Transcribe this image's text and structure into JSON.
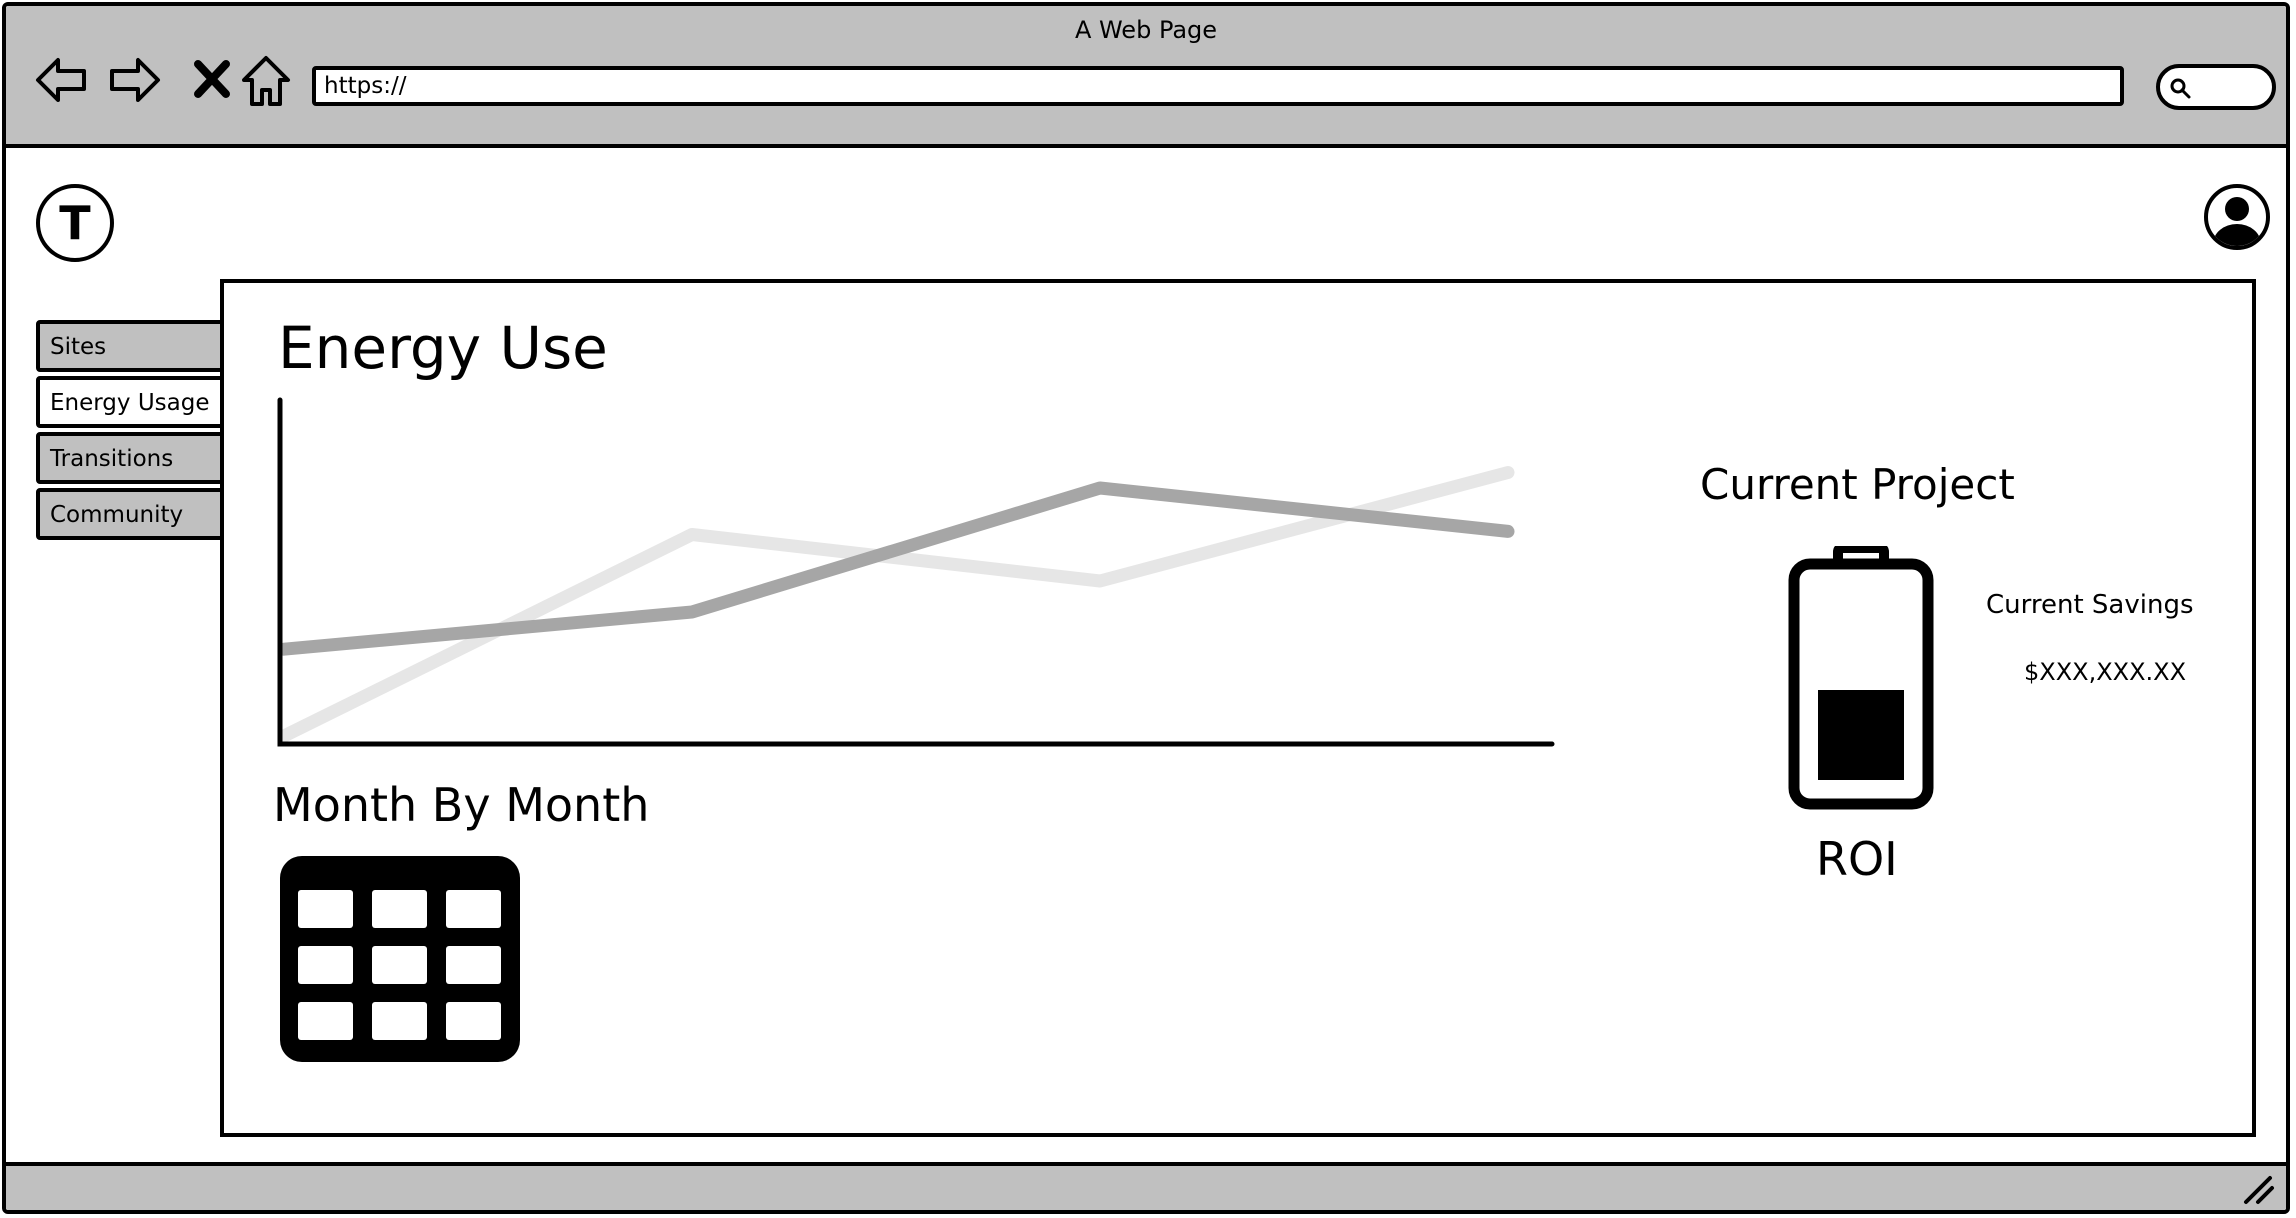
{
  "window": {
    "title": "A Web Page"
  },
  "toolbar": {
    "url": "https://",
    "icons": [
      "back-arrow-icon",
      "forward-arrow-icon",
      "close-icon",
      "home-icon",
      "search-icon"
    ]
  },
  "header": {
    "logo_letter": "T",
    "avatar_icon": "user-avatar-icon"
  },
  "sidebar": {
    "items": [
      {
        "label": "Sites",
        "active": false
      },
      {
        "label": "Energy Usage",
        "active": true
      },
      {
        "label": "Transitions",
        "active": false
      },
      {
        "label": "Community",
        "active": false
      }
    ]
  },
  "main": {
    "energy_title": "Energy Use",
    "month_title": "Month By Month",
    "project": {
      "title": "Current Project",
      "savings_label": "Current Savings",
      "savings_value": "$XXX,XXX.XX",
      "roi_label": "ROI",
      "battery_level": 0.45
    }
  },
  "colors": {
    "chrome": "#c0c0c0",
    "series_dark": "#a6a6a6",
    "series_light": "#e6e6e6"
  },
  "chart_data": {
    "type": "line",
    "title": "",
    "xlabel": "",
    "ylabel": "",
    "x": [
      1,
      2,
      3,
      4
    ],
    "ylim": [
      0,
      100
    ],
    "grid": false,
    "legend": "none",
    "series": [
      {
        "values": [
          0,
          65,
          50,
          85
        ],
        "color": "#e6e6e6"
      },
      {
        "values": [
          28,
          40,
          80,
          66
        ],
        "color": "#a6a6a6"
      }
    ]
  }
}
